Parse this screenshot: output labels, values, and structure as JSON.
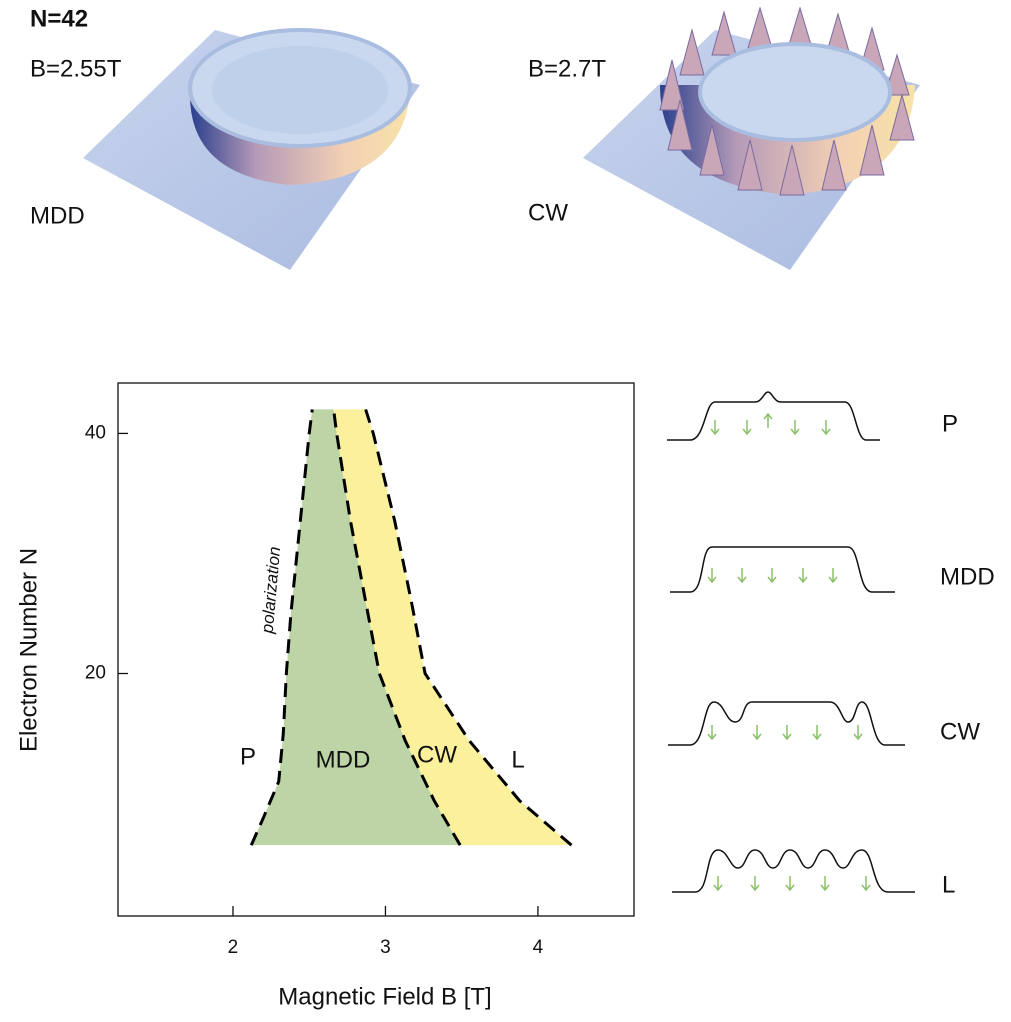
{
  "panels": {
    "n_label": "N=42",
    "left": {
      "field": "B=2.55T",
      "state": "MDD"
    },
    "right": {
      "field": "B=2.7T",
      "state": "CW"
    }
  },
  "chart_data": {
    "type": "line",
    "x_label": "Magnetic Field B [T]",
    "y_label": "Electron Number N",
    "xlim": [
      1.246,
      4.63
    ],
    "ylim": [
      -0.2,
      44.2
    ],
    "xticks": [
      2,
      3,
      4
    ],
    "yticks": [
      20,
      40
    ],
    "series": [
      {
        "color": "#000000",
        "x": [
          2.12,
          2.2,
          2.3,
          2.33,
          2.35,
          2.38,
          2.42,
          2.46,
          2.5,
          2.52
        ],
        "y": [
          5.7,
          8,
          11,
          15,
          20,
          25,
          30,
          35,
          40,
          42
        ]
      },
      {
        "color": "#000000",
        "x": [
          3.49,
          3.32,
          3.13,
          2.96,
          2.87,
          2.77,
          2.68,
          2.66
        ],
        "y": [
          5.7,
          9.4,
          14.4,
          20,
          26,
          32.75,
          40,
          42
        ]
      },
      {
        "color": "#000000",
        "x": [
          4.22,
          3.88,
          3.55,
          3.26,
          3.17,
          3.06,
          2.92,
          2.87
        ],
        "y": [
          5.7,
          9.4,
          14.4,
          20,
          26,
          32.75,
          40,
          42
        ]
      }
    ],
    "region_colors": [
      "#bcd4a6",
      "#fbf19c"
    ],
    "annotations": [
      "polarization",
      "P",
      "MDD",
      "CW",
      "L"
    ]
  },
  "profiles": [
    "P",
    "MDD",
    "CW",
    "L"
  ]
}
